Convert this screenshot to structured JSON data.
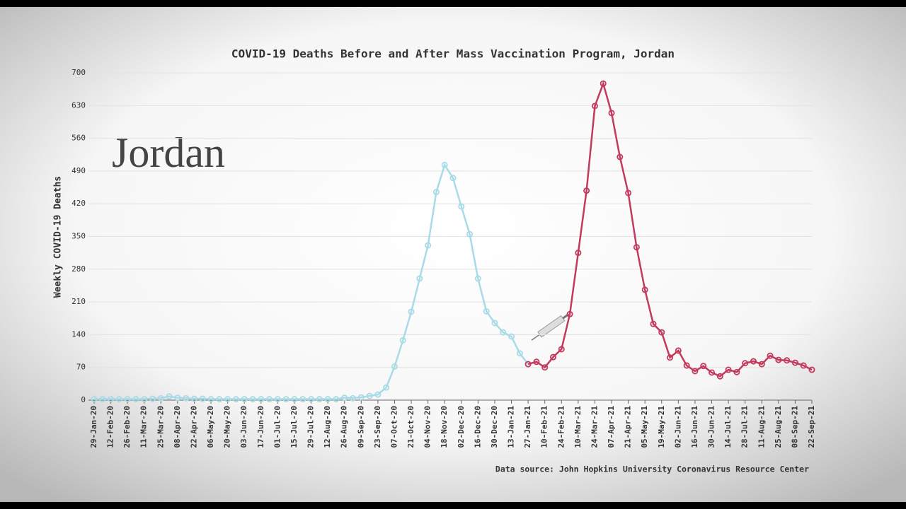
{
  "chart_data": {
    "type": "line",
    "title": "COVID-19 Deaths Before and After Mass Vaccination Program, Jordan",
    "annotation": "Jordan",
    "source": "Data source: John Hopkins University Coronavirus Resource Center",
    "ylabel": "Weekly COVID-19 Deaths",
    "categories": [
      "29-Jan-20",
      null,
      "12-Feb-20",
      null,
      "26-Feb-20",
      null,
      "11-Mar-20",
      null,
      "25-Mar-20",
      null,
      "08-Apr-20",
      null,
      "22-Apr-20",
      null,
      "06-May-20",
      null,
      "20-May-20",
      null,
      "03-Jun-20",
      null,
      "17-Jun-20",
      null,
      "01-Jul-20",
      null,
      "15-Jul-20",
      null,
      "29-Jul-20",
      null,
      "12-Aug-20",
      null,
      "26-Aug-20",
      null,
      "09-Sep-20",
      null,
      "23-Sep-20",
      null,
      "07-Oct-20",
      null,
      "21-Oct-20",
      null,
      "04-Nov-20",
      null,
      "18-Nov-20",
      null,
      "02-Dec-20",
      null,
      "16-Dec-20",
      null,
      "30-Dec-20",
      null,
      "13-Jan-21",
      null,
      "27-Jan-21",
      null,
      "10-Feb-21",
      null,
      "24-Feb-21",
      null,
      "10-Mar-21",
      null,
      "24-Mar-21",
      null,
      "07-Apr-21",
      null,
      "21-Apr-21",
      null,
      "05-May-21",
      null,
      "19-May-21",
      null,
      "02-Jun-21",
      null,
      "16-Jun-21",
      null,
      "30-Jun-21",
      null,
      "14-Jul-21",
      null,
      "28-Jul-21",
      null,
      "11-Aug-21",
      null,
      "25-Aug-21",
      null,
      "08-Sep-21",
      null,
      "22-Sep-21"
    ],
    "series": [
      {
        "color": "#a9dbe6",
        "values": [
          2,
          2,
          2,
          2,
          2,
          2,
          2,
          3,
          4,
          8,
          5,
          4,
          3,
          3,
          2,
          2,
          2,
          2,
          2,
          2,
          2,
          2,
          2,
          2,
          2,
          2,
          2,
          2,
          2,
          2,
          5,
          4,
          6,
          9,
          12,
          27,
          72,
          128,
          189,
          260,
          331,
          445,
          503,
          475,
          414,
          355,
          260,
          190,
          165,
          145,
          136,
          100,
          77,
          null,
          null,
          null,
          null,
          null,
          null,
          null,
          null,
          null,
          null,
          null,
          null,
          null,
          null,
          null,
          null,
          null,
          null,
          null,
          null,
          null,
          null,
          null,
          null,
          null,
          null,
          null,
          null,
          null,
          null,
          null,
          null,
          null,
          null
        ]
      },
      {
        "color": "#c23a5c",
        "values": [
          null,
          null,
          null,
          null,
          null,
          null,
          null,
          null,
          null,
          null,
          null,
          null,
          null,
          null,
          null,
          null,
          null,
          null,
          null,
          null,
          null,
          null,
          null,
          null,
          null,
          null,
          null,
          null,
          null,
          null,
          null,
          null,
          null,
          null,
          null,
          null,
          null,
          null,
          null,
          null,
          null,
          null,
          null,
          null,
          null,
          null,
          null,
          null,
          null,
          null,
          null,
          null,
          77,
          82,
          70,
          92,
          109,
          184,
          315,
          448,
          629,
          677,
          614,
          520,
          443,
          327,
          236,
          163,
          145,
          91,
          106,
          74,
          62,
          73,
          59,
          51,
          65,
          60,
          79,
          83,
          77,
          95,
          86,
          85,
          80,
          74,
          65
        ]
      }
    ],
    "ylim": [
      0,
      700
    ],
    "yticks": [
      0,
      70,
      140,
      210,
      280,
      350,
      420,
      490,
      560,
      630,
      700
    ],
    "grid": true
  }
}
